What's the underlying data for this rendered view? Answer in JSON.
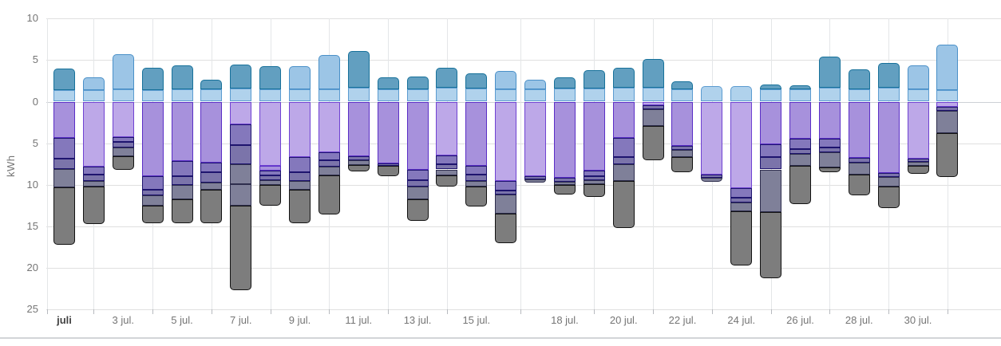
{
  "chart_data": {
    "type": "bar",
    "mode": "stacked-diverging",
    "title": "",
    "ylabel": "kWh",
    "xlabel": "",
    "grid": true,
    "legend_position": "none",
    "y_axis": {
      "unit": "kWh",
      "top_max": 10,
      "bottom_max": 25
    },
    "yticks": [
      {
        "value": 10,
        "label": "10"
      },
      {
        "value": 5,
        "label": "5"
      },
      {
        "value": 0,
        "label": "0"
      },
      {
        "value": -5,
        "label": "5"
      },
      {
        "value": -10,
        "label": "10"
      },
      {
        "value": -15,
        "label": "15"
      },
      {
        "value": -20,
        "label": "20"
      },
      {
        "value": -25,
        "label": "25"
      }
    ],
    "xticks": [
      {
        "bar": 1,
        "label": "juli",
        "bold": true
      },
      {
        "bar": 3,
        "label": "3 jul.",
        "bold": false
      },
      {
        "bar": 5,
        "label": "5 jul.",
        "bold": false
      },
      {
        "bar": 7,
        "label": "7 jul.",
        "bold": false
      },
      {
        "bar": 9,
        "label": "9 jul.",
        "bold": false
      },
      {
        "bar": 11,
        "label": "11 jul.",
        "bold": false
      },
      {
        "bar": 13,
        "label": "13 jul.",
        "bold": false
      },
      {
        "bar": 15,
        "label": "15 jul.",
        "bold": false
      },
      {
        "bar": 18,
        "label": "18 jul.",
        "bold": false
      },
      {
        "bar": 20,
        "label": "20 jul.",
        "bold": false
      },
      {
        "bar": 22,
        "label": "22 jul.",
        "bold": false
      },
      {
        "bar": 24,
        "label": "24 jul.",
        "bold": false
      },
      {
        "bar": 26,
        "label": "26 jul.",
        "bold": false
      },
      {
        "bar": 28,
        "label": "28 jul.",
        "bold": false
      },
      {
        "bar": 30,
        "label": "30 jul.",
        "bold": false
      }
    ],
    "palette": {
      "pb": {
        "name": "pale-blue",
        "fill": "#b0d2ec",
        "border": "#5b9bd0"
      },
      "mb": {
        "name": "medium-blue",
        "fill": "#9cc5e6",
        "border": "#4a90c8"
      },
      "tl": {
        "name": "dark-teal",
        "fill": "#629fc0",
        "border": "#17719a"
      },
      "lv": {
        "name": "lavender",
        "fill": "#bda8e8",
        "border": "#6f42d2"
      },
      "pu": {
        "name": "purple",
        "fill": "#a791dc",
        "border": "#5a2ec6"
      },
      "in": {
        "name": "indigo",
        "fill": "#8478bc",
        "border": "#1e146e"
      },
      "nv": {
        "name": "navy-slate",
        "fill": "#7b74aa",
        "border": "#1e146e"
      },
      "sl": {
        "name": "slate-gray",
        "fill": "#7f8099",
        "border": "#2e2e4d"
      },
      "gr": {
        "name": "gray",
        "fill": "#7d7d7d",
        "border": "#121212"
      }
    },
    "days": [
      {
        "day": 1,
        "above": [
          [
            "pb",
            1.4
          ],
          [
            "tl",
            2.6
          ]
        ],
        "below": [
          [
            "pu",
            4.4
          ],
          [
            "in",
            2.5
          ],
          [
            "nv",
            1.2
          ],
          [
            "sl",
            2.2
          ],
          [
            "gr",
            6.9
          ]
        ]
      },
      {
        "day": 2,
        "above": [
          [
            "pb",
            1.4
          ],
          [
            "mb",
            1.5
          ]
        ],
        "below": [
          [
            "lv",
            7.8
          ],
          [
            "in",
            1.0
          ],
          [
            "nv",
            0.7
          ],
          [
            "sl",
            0.7
          ],
          [
            "gr",
            4.5
          ]
        ]
      },
      {
        "day": 3,
        "above": [
          [
            "pb",
            1.45
          ],
          [
            "mb",
            4.3
          ]
        ],
        "below": [
          [
            "lv",
            4.3
          ],
          [
            "in",
            0.5
          ],
          [
            "nv",
            0.7
          ],
          [
            "sl",
            1.1
          ],
          [
            "gr",
            1.6
          ]
        ]
      },
      {
        "day": 4,
        "above": [
          [
            "pb",
            1.4
          ],
          [
            "tl",
            2.7
          ]
        ],
        "below": [
          [
            "pu",
            8.95
          ],
          [
            "in",
            1.6
          ],
          [
            "nv",
            0.75
          ],
          [
            "sl",
            1.2
          ],
          [
            "gr",
            2.1
          ]
        ]
      },
      {
        "day": 5,
        "above": [
          [
            "pb",
            1.5
          ],
          [
            "tl",
            2.9
          ]
        ],
        "below": [
          [
            "pu",
            7.1
          ],
          [
            "in",
            1.85
          ],
          [
            "nv",
            1.1
          ],
          [
            "sl",
            1.65
          ],
          [
            "gr",
            2.9
          ]
        ]
      },
      {
        "day": 6,
        "above": [
          [
            "pb",
            1.5
          ],
          [
            "tl",
            1.1
          ]
        ],
        "below": [
          [
            "pu",
            7.35
          ],
          [
            "in",
            1.1
          ],
          [
            "nv",
            1.3
          ],
          [
            "sl",
            0.8
          ],
          [
            "gr",
            4.05
          ]
        ]
      },
      {
        "day": 7,
        "above": [
          [
            "pb",
            1.6
          ],
          [
            "tl",
            2.9
          ]
        ],
        "below": [
          [
            "lv",
            2.7
          ],
          [
            "in",
            2.5
          ],
          [
            "nv",
            2.35
          ],
          [
            "sl",
            2.35
          ],
          [
            "sl",
            2.6
          ],
          [
            "gr",
            10.2
          ]
        ]
      },
      {
        "day": 8,
        "above": [
          [
            "pb",
            1.5
          ],
          [
            "tl",
            2.75
          ]
        ],
        "below": [
          [
            "lv",
            7.75
          ],
          [
            "pu",
            0.55
          ],
          [
            "in",
            0.55
          ],
          [
            "nv",
            0.55
          ],
          [
            "sl",
            0.65
          ],
          [
            "gr",
            2.45
          ]
        ]
      },
      {
        "day": 9,
        "above": [
          [
            "pb",
            1.45
          ],
          [
            "mb",
            2.85
          ]
        ],
        "below": [
          [
            "lv",
            6.7
          ],
          [
            "in",
            1.8
          ],
          [
            "nv",
            1.0
          ],
          [
            "sl",
            1.1
          ],
          [
            "gr",
            4.0
          ]
        ]
      },
      {
        "day": 10,
        "above": [
          [
            "pb",
            1.5
          ],
          [
            "mb",
            4.1
          ]
        ],
        "below": [
          [
            "lv",
            6.05
          ],
          [
            "in",
            1.0
          ],
          [
            "nv",
            0.8
          ],
          [
            "sl",
            1.0
          ],
          [
            "gr",
            4.7
          ]
        ]
      },
      {
        "day": 11,
        "above": [
          [
            "pb",
            1.7
          ],
          [
            "tl",
            4.4
          ]
        ],
        "below": [
          [
            "pu",
            6.55
          ],
          [
            "nv",
            0.5
          ],
          [
            "sl",
            0.6
          ],
          [
            "gr",
            0.7
          ]
        ]
      },
      {
        "day": 12,
        "above": [
          [
            "pb",
            1.45
          ],
          [
            "tl",
            1.45
          ]
        ],
        "below": [
          [
            "pu",
            7.4
          ],
          [
            "nv",
            0.3
          ],
          [
            "gr",
            1.3
          ]
        ]
      },
      {
        "day": 13,
        "above": [
          [
            "pb",
            1.45
          ],
          [
            "tl",
            1.6
          ]
        ],
        "below": [
          [
            "pu",
            8.15
          ],
          [
            "in",
            1.3
          ],
          [
            "nv",
            0.8
          ],
          [
            "sl",
            1.45
          ],
          [
            "gr",
            2.6
          ]
        ]
      },
      {
        "day": 14,
        "above": [
          [
            "pb",
            1.7
          ],
          [
            "tl",
            2.4
          ]
        ],
        "below": [
          [
            "lv",
            6.5
          ],
          [
            "in",
            1.05
          ],
          [
            "nv",
            0.6
          ],
          [
            "sl",
            0.7
          ],
          [
            "gr",
            1.4
          ]
        ]
      },
      {
        "day": 15,
        "above": [
          [
            "pb",
            1.6
          ],
          [
            "tl",
            1.85
          ]
        ],
        "below": [
          [
            "pu",
            7.75
          ],
          [
            "in",
            1.05
          ],
          [
            "nv",
            0.7
          ],
          [
            "sl",
            0.75
          ],
          [
            "gr",
            2.35
          ]
        ]
      },
      {
        "day": 16,
        "above": [
          [
            "pb",
            1.45
          ],
          [
            "mb",
            2.25
          ]
        ],
        "below": [
          [
            "lv",
            9.55
          ],
          [
            "in",
            1.1
          ],
          [
            "nv",
            0.55
          ],
          [
            "sl",
            2.3
          ],
          [
            "gr",
            3.5
          ]
        ]
      },
      {
        "day": 17,
        "above": [
          [
            "pb",
            1.45
          ],
          [
            "mb",
            1.15
          ]
        ],
        "below": [
          [
            "lv",
            8.95
          ],
          [
            "nv",
            0.4
          ],
          [
            "sl",
            0.4
          ]
        ]
      },
      {
        "day": 18,
        "above": [
          [
            "pb",
            1.55
          ],
          [
            "tl",
            1.35
          ]
        ],
        "below": [
          [
            "pu",
            9.15
          ],
          [
            "nv",
            0.45
          ],
          [
            "sl",
            0.4
          ],
          [
            "gr",
            1.2
          ]
        ]
      },
      {
        "day": 19,
        "above": [
          [
            "pb",
            1.55
          ],
          [
            "tl",
            2.25
          ]
        ],
        "below": [
          [
            "pu",
            8.25
          ],
          [
            "in",
            0.7
          ],
          [
            "nv",
            0.5
          ],
          [
            "sl",
            0.5
          ],
          [
            "gr",
            1.5
          ]
        ]
      },
      {
        "day": 20,
        "above": [
          [
            "pb",
            1.7
          ],
          [
            "tl",
            2.4
          ]
        ],
        "below": [
          [
            "pu",
            4.4
          ],
          [
            "in",
            2.25
          ],
          [
            "nv",
            0.85
          ],
          [
            "sl",
            2.05
          ],
          [
            "gr",
            5.6
          ]
        ]
      },
      {
        "day": 21,
        "above": [
          [
            "pb",
            1.7
          ],
          [
            "tl",
            3.45
          ]
        ],
        "below": [
          [
            "lv",
            0.45
          ],
          [
            "nv",
            0.5
          ],
          [
            "sl",
            1.95
          ],
          [
            "gr",
            4.15
          ]
        ]
      },
      {
        "day": 22,
        "above": [
          [
            "pb",
            1.45
          ],
          [
            "tl",
            1.0
          ]
        ],
        "below": [
          [
            "pu",
            5.3
          ],
          [
            "nv",
            0.5
          ],
          [
            "sl",
            0.85
          ],
          [
            "gr",
            1.8
          ]
        ]
      },
      {
        "day": 23,
        "above": [
          [
            "pb",
            1.9
          ]
        ],
        "below": [
          [
            "lv",
            8.8
          ],
          [
            "nv",
            0.4
          ],
          [
            "sl",
            0.4
          ]
        ]
      },
      {
        "day": 24,
        "above": [
          [
            "pb",
            1.9
          ]
        ],
        "below": [
          [
            "lv",
            10.4
          ],
          [
            "in",
            1.15
          ],
          [
            "nv",
            0.6
          ],
          [
            "sl",
            1.0
          ],
          [
            "gr",
            6.6
          ]
        ]
      },
      {
        "day": 25,
        "above": [
          [
            "pb",
            1.45
          ],
          [
            "tl",
            0.6
          ]
        ],
        "below": [
          [
            "pu",
            5.1
          ],
          [
            "in",
            1.6
          ],
          [
            "nv",
            1.45
          ],
          [
            "sl",
            5.15
          ],
          [
            "gr",
            7.9
          ]
        ]
      },
      {
        "day": 26,
        "above": [
          [
            "pb",
            1.45
          ],
          [
            "tl",
            0.55
          ]
        ],
        "below": [
          [
            "pu",
            4.45
          ],
          [
            "in",
            1.25
          ],
          [
            "nv",
            0.55
          ],
          [
            "sl",
            1.45
          ],
          [
            "gr",
            4.65
          ]
        ]
      },
      {
        "day": 27,
        "above": [
          [
            "pb",
            1.7
          ],
          [
            "tl",
            3.75
          ]
        ],
        "below": [
          [
            "pu",
            4.45
          ],
          [
            "in",
            1.05
          ],
          [
            "nv",
            0.6
          ],
          [
            "sl",
            1.85
          ],
          [
            "gr",
            0.55
          ]
        ]
      },
      {
        "day": 28,
        "above": [
          [
            "pb",
            1.5
          ],
          [
            "tl",
            2.35
          ]
        ],
        "below": [
          [
            "pu",
            6.75
          ],
          [
            "nv",
            0.6
          ],
          [
            "sl",
            1.45
          ],
          [
            "gr",
            2.5
          ]
        ]
      },
      {
        "day": 29,
        "above": [
          [
            "pb",
            1.7
          ],
          [
            "tl",
            2.95
          ]
        ],
        "below": [
          [
            "pu",
            8.6
          ],
          [
            "nv",
            0.5
          ],
          [
            "sl",
            1.1
          ],
          [
            "gr",
            2.6
          ]
        ]
      },
      {
        "day": 30,
        "above": [
          [
            "pb",
            1.45
          ],
          [
            "mb",
            2.9
          ]
        ],
        "below": [
          [
            "lv",
            6.85
          ],
          [
            "nv",
            0.4
          ],
          [
            "sl",
            0.5
          ],
          [
            "gr",
            0.9
          ]
        ]
      },
      {
        "day": 31,
        "above": [
          [
            "pb",
            1.4
          ],
          [
            "mb",
            5.5
          ]
        ],
        "below": [
          [
            "lv",
            0.65
          ],
          [
            "nv",
            0.45
          ],
          [
            "sl",
            2.65
          ],
          [
            "gr",
            5.35
          ]
        ]
      }
    ]
  }
}
